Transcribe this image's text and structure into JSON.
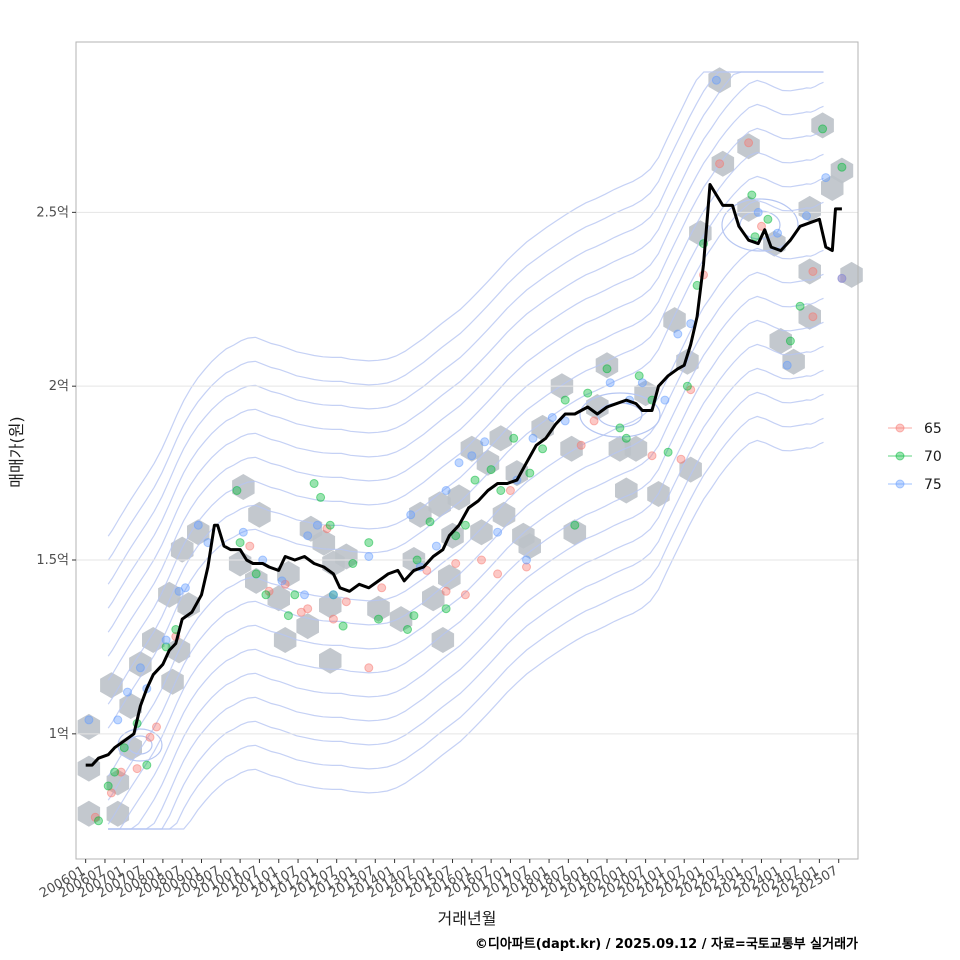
{
  "chart_data": {
    "type": "scatter",
    "xlabel": "거래년월",
    "ylabel": "매매가(원)",
    "caption": "©디아파트(dapt.kr) / 2025.09.12 / 자료=국토교통부 실거래가",
    "x_ticks": [
      "200601",
      "200607",
      "200701",
      "200707",
      "200801",
      "200807",
      "200901",
      "200907",
      "201001",
      "201007",
      "201101",
      "201107",
      "201201",
      "201207",
      "201301",
      "201307",
      "201401",
      "201407",
      "201501",
      "201507",
      "201601",
      "201607",
      "201701",
      "201707",
      "201801",
      "201807",
      "201901",
      "201907",
      "202001",
      "202007",
      "202101",
      "202107",
      "202201",
      "202207",
      "202301",
      "202307",
      "202401",
      "202407",
      "202501",
      "202507"
    ],
    "y_ticks": [
      {
        "value": 100000000,
        "label": "1억"
      },
      {
        "value": 150000000,
        "label": "1.5억"
      },
      {
        "value": 200000000,
        "label": "2억"
      },
      {
        "value": 250000000,
        "label": "2.5억"
      }
    ],
    "xlim": [
      "2005-10",
      "2026-01"
    ],
    "ylim": [
      64000000,
      299000000
    ],
    "grid": "horizontal",
    "legend_position": "right",
    "legend": [
      {
        "name": "65",
        "color": "#f8766d"
      },
      {
        "name": "70",
        "color": "#00ba38"
      },
      {
        "name": "75",
        "color": "#619cff"
      }
    ],
    "trend_line": [
      [
        "2006-01",
        91
      ],
      [
        "2006-03",
        91
      ],
      [
        "2006-05",
        93
      ],
      [
        "2006-08",
        94
      ],
      [
        "2006-10",
        96
      ],
      [
        "2007-01",
        98
      ],
      [
        "2007-04",
        100
      ],
      [
        "2007-06",
        108
      ],
      [
        "2007-08",
        113
      ],
      [
        "2007-10",
        117
      ],
      [
        "2008-01",
        120
      ],
      [
        "2008-03",
        124
      ],
      [
        "2008-05",
        126
      ],
      [
        "2008-07",
        133
      ],
      [
        "2008-10",
        135
      ],
      [
        "2009-01",
        140
      ],
      [
        "2009-03",
        148
      ],
      [
        "2009-05",
        160
      ],
      [
        "2009-06",
        160
      ],
      [
        "2009-08",
        154
      ],
      [
        "2009-10",
        153
      ],
      [
        "2010-01",
        153
      ],
      [
        "2010-03",
        150
      ],
      [
        "2010-05",
        149
      ],
      [
        "2010-08",
        149
      ],
      [
        "2010-10",
        148
      ],
      [
        "2011-01",
        147
      ],
      [
        "2011-03",
        151
      ],
      [
        "2011-06",
        150
      ],
      [
        "2011-09",
        151
      ],
      [
        "2011-12",
        149
      ],
      [
        "2012-03",
        148
      ],
      [
        "2012-06",
        146
      ],
      [
        "2012-08",
        142
      ],
      [
        "2012-11",
        141
      ],
      [
        "2013-02",
        143
      ],
      [
        "2013-05",
        142
      ],
      [
        "2013-08",
        144
      ],
      [
        "2013-11",
        146
      ],
      [
        "2014-02",
        147
      ],
      [
        "2014-04",
        144
      ],
      [
        "2014-07",
        147
      ],
      [
        "2014-10",
        148
      ],
      [
        "2015-01",
        151
      ],
      [
        "2015-04",
        153
      ],
      [
        "2015-06",
        157
      ],
      [
        "2015-09",
        160
      ],
      [
        "2015-12",
        165
      ],
      [
        "2016-03",
        167
      ],
      [
        "2016-06",
        170
      ],
      [
        "2016-09",
        172
      ],
      [
        "2016-12",
        172
      ],
      [
        "2017-03",
        173
      ],
      [
        "2017-06",
        178
      ],
      [
        "2017-09",
        183
      ],
      [
        "2017-12",
        185
      ],
      [
        "2018-03",
        189
      ],
      [
        "2018-06",
        192
      ],
      [
        "2018-09",
        192
      ],
      [
        "2019-01",
        194
      ],
      [
        "2019-04",
        192
      ],
      [
        "2019-07",
        194
      ],
      [
        "2019-10",
        195
      ],
      [
        "2020-01",
        196
      ],
      [
        "2020-04",
        195
      ],
      [
        "2020-06",
        193
      ],
      [
        "2020-09",
        193
      ],
      [
        "2020-11",
        200
      ],
      [
        "2021-02",
        203
      ],
      [
        "2021-05",
        205
      ],
      [
        "2021-07",
        206
      ],
      [
        "2021-09",
        212
      ],
      [
        "2021-11",
        220
      ],
      [
        "2022-01",
        235
      ],
      [
        "2022-03",
        258
      ],
      [
        "2022-05",
        255
      ],
      [
        "2022-07",
        252
      ],
      [
        "2022-10",
        252
      ],
      [
        "2022-12",
        246
      ],
      [
        "2023-03",
        242
      ],
      [
        "2023-06",
        241
      ],
      [
        "2023-08",
        245
      ],
      [
        "2023-10",
        240
      ],
      [
        "2024-01",
        239
      ],
      [
        "2024-04",
        242
      ],
      [
        "2024-07",
        246
      ],
      [
        "2024-10",
        247
      ],
      [
        "2025-01",
        248
      ],
      [
        "2025-03",
        240
      ],
      [
        "2025-05",
        239
      ],
      [
        "2025-06",
        251
      ],
      [
        "2025-08",
        251
      ]
    ],
    "hexbins": [
      [
        "2006-02",
        102
      ],
      [
        "2006-02",
        90
      ],
      [
        "2006-02",
        77
      ],
      [
        "2006-11",
        77
      ],
      [
        "2006-11",
        86
      ],
      [
        "2007-03",
        96
      ],
      [
        "2006-09",
        114
      ],
      [
        "2007-06",
        120
      ],
      [
        "2007-03",
        108
      ],
      [
        "2007-10",
        127
      ],
      [
        "2008-04",
        115
      ],
      [
        "2008-06",
        124
      ],
      [
        "2008-03",
        140
      ],
      [
        "2008-09",
        137
      ],
      [
        "2008-07",
        153
      ],
      [
        "2008-12",
        158
      ],
      [
        "2010-02",
        171
      ],
      [
        "2010-07",
        163
      ],
      [
        "2010-01",
        149
      ],
      [
        "2010-06",
        144
      ],
      [
        "2011-01",
        139
      ],
      [
        "2011-04",
        146
      ],
      [
        "2011-03",
        127
      ],
      [
        "2011-10",
        131
      ],
      [
        "2011-11",
        159
      ],
      [
        "2012-03",
        155
      ],
      [
        "2012-06",
        149
      ],
      [
        "2012-05",
        137
      ],
      [
        "2012-10",
        151
      ],
      [
        "2012-05",
        121
      ],
      [
        "2013-08",
        136
      ],
      [
        "2014-03",
        133
      ],
      [
        "2014-07",
        150
      ],
      [
        "2014-09",
        163
      ],
      [
        "2015-01",
        139
      ],
      [
        "2015-04",
        127
      ],
      [
        "2015-06",
        145
      ],
      [
        "2015-07",
        157
      ],
      [
        "2015-03",
        166
      ],
      [
        "2015-09",
        168
      ],
      [
        "2016-01",
        182
      ],
      [
        "2016-06",
        178
      ],
      [
        "2016-04",
        158
      ],
      [
        "2016-11",
        163
      ],
      [
        "2016-10",
        185
      ],
      [
        "2017-03",
        175
      ],
      [
        "2017-05",
        157
      ],
      [
        "2017-07",
        154
      ],
      [
        "2017-11",
        188
      ],
      [
        "2018-05",
        200
      ],
      [
        "2018-08",
        182
      ],
      [
        "2018-09",
        158
      ],
      [
        "2019-07",
        206
      ],
      [
        "2019-04",
        194
      ],
      [
        "2019-11",
        182
      ],
      [
        "2020-04",
        182
      ],
      [
        "2020-07",
        198
      ],
      [
        "2020-01",
        170
      ],
      [
        "2020-11",
        169
      ],
      [
        "2021-04",
        219
      ],
      [
        "2021-08",
        207
      ],
      [
        "2021-12",
        244
      ],
      [
        "2021-09",
        176
      ],
      [
        "2022-07",
        264
      ],
      [
        "2022-06",
        288
      ],
      [
        "2023-03",
        269
      ],
      [
        "2023-03",
        251
      ],
      [
        "2023-11",
        241
      ],
      [
        "2024-01",
        213
      ],
      [
        "2024-05",
        207
      ],
      [
        "2024-10",
        233
      ],
      [
        "2024-10",
        220
      ],
      [
        "2024-10",
        251
      ],
      [
        "2025-02",
        275
      ],
      [
        "2025-05",
        257
      ],
      [
        "2025-08",
        262
      ],
      [
        "2025-11",
        232
      ]
    ],
    "series": [
      {
        "name": "65",
        "points": [
          [
            "2006-04",
            76
          ],
          [
            "2006-09",
            83
          ],
          [
            "2006-12",
            89
          ],
          [
            "2007-05",
            90
          ],
          [
            "2007-09",
            99
          ],
          [
            "2007-11",
            102
          ],
          [
            "2008-05",
            128
          ],
          [
            "2010-04",
            154
          ],
          [
            "2010-10",
            141
          ],
          [
            "2011-03",
            143
          ],
          [
            "2011-08",
            135
          ],
          [
            "2011-10",
            136
          ],
          [
            "2012-04",
            159
          ],
          [
            "2012-06",
            133
          ],
          [
            "2012-10",
            138
          ],
          [
            "2013-05",
            119
          ],
          [
            "2013-09",
            142
          ],
          [
            "2014-11",
            147
          ],
          [
            "2015-05",
            141
          ],
          [
            "2015-08",
            149
          ],
          [
            "2015-11",
            140
          ],
          [
            "2016-04",
            150
          ],
          [
            "2016-09",
            146
          ],
          [
            "2017-06",
            148
          ],
          [
            "2017-01",
            170
          ],
          [
            "2018-11",
            183
          ],
          [
            "2019-03",
            190
          ],
          [
            "2020-09",
            180
          ],
          [
            "2021-06",
            179
          ],
          [
            "2021-09",
            199
          ],
          [
            "2022-01",
            232
          ],
          [
            "2022-06",
            264
          ],
          [
            "2023-03",
            270
          ],
          [
            "2023-07",
            246
          ],
          [
            "2024-11",
            233
          ],
          [
            "2024-11",
            220
          ],
          [
            "2025-08",
            231
          ]
        ]
      },
      {
        "name": "70",
        "points": [
          [
            "2006-05",
            75
          ],
          [
            "2006-08",
            85
          ],
          [
            "2006-10",
            89
          ],
          [
            "2007-01",
            96
          ],
          [
            "2007-05",
            103
          ],
          [
            "2007-08",
            91
          ],
          [
            "2008-02",
            125
          ],
          [
            "2008-05",
            130
          ],
          [
            "2009-12",
            170
          ],
          [
            "2010-01",
            155
          ],
          [
            "2010-06",
            146
          ],
          [
            "2010-09",
            140
          ],
          [
            "2011-06",
            140
          ],
          [
            "2011-04",
            134
          ],
          [
            "2011-12",
            172
          ],
          [
            "2012-02",
            168
          ],
          [
            "2012-05",
            160
          ],
          [
            "2012-06",
            140
          ],
          [
            "2012-09",
            131
          ],
          [
            "2012-12",
            149
          ],
          [
            "2013-05",
            155
          ],
          [
            "2013-08",
            133
          ],
          [
            "2014-05",
            130
          ],
          [
            "2014-07",
            134
          ],
          [
            "2014-08",
            150
          ],
          [
            "2014-12",
            161
          ],
          [
            "2015-05",
            136
          ],
          [
            "2015-08",
            157
          ],
          [
            "2015-11",
            160
          ],
          [
            "2016-02",
            173
          ],
          [
            "2016-07",
            176
          ],
          [
            "2016-10",
            170
          ],
          [
            "2017-02",
            185
          ],
          [
            "2017-07",
            175
          ],
          [
            "2017-11",
            182
          ],
          [
            "2018-06",
            196
          ],
          [
            "2018-09",
            160
          ],
          [
            "2019-01",
            198
          ],
          [
            "2019-07",
            205
          ],
          [
            "2019-11",
            188
          ],
          [
            "2020-01",
            185
          ],
          [
            "2020-05",
            203
          ],
          [
            "2020-09",
            196
          ],
          [
            "2021-02",
            181
          ],
          [
            "2021-08",
            200
          ],
          [
            "2021-11",
            229
          ],
          [
            "2022-01",
            241
          ],
          [
            "2023-04",
            255
          ],
          [
            "2023-05",
            243
          ],
          [
            "2023-09",
            248
          ],
          [
            "2024-04",
            213
          ],
          [
            "2024-07",
            223
          ],
          [
            "2025-02",
            274
          ],
          [
            "2025-08",
            263
          ]
        ]
      },
      {
        "name": "75",
        "points": [
          [
            "2006-02",
            104
          ],
          [
            "2006-11",
            104
          ],
          [
            "2007-02",
            112
          ],
          [
            "2007-06",
            119
          ],
          [
            "2007-08",
            113
          ],
          [
            "2008-02",
            127
          ],
          [
            "2008-06",
            141
          ],
          [
            "2008-08",
            142
          ],
          [
            "2008-12",
            160
          ],
          [
            "2009-03",
            155
          ],
          [
            "2010-02",
            158
          ],
          [
            "2010-08",
            150
          ],
          [
            "2011-02",
            144
          ],
          [
            "2011-09",
            140
          ],
          [
            "2011-10",
            157
          ],
          [
            "2012-01",
            160
          ],
          [
            "2012-06",
            140
          ],
          [
            "2013-05",
            151
          ],
          [
            "2014-06",
            163
          ],
          [
            "2014-09",
            148
          ],
          [
            "2015-02",
            154
          ],
          [
            "2015-05",
            170
          ],
          [
            "2015-09",
            178
          ],
          [
            "2016-01",
            180
          ],
          [
            "2016-05",
            184
          ],
          [
            "2016-09",
            158
          ],
          [
            "2017-03",
            173
          ],
          [
            "2017-06",
            150
          ],
          [
            "2017-08",
            185
          ],
          [
            "2018-02",
            191
          ],
          [
            "2018-06",
            190
          ],
          [
            "2019-08",
            201
          ],
          [
            "2020-02",
            196
          ],
          [
            "2020-06",
            201
          ],
          [
            "2021-01",
            196
          ],
          [
            "2021-05",
            215
          ],
          [
            "2021-09",
            218
          ],
          [
            "2022-05",
            288
          ],
          [
            "2023-06",
            250
          ],
          [
            "2023-12",
            244
          ],
          [
            "2024-03",
            206
          ],
          [
            "2024-09",
            249
          ],
          [
            "2025-03",
            260
          ],
          [
            "2025-08",
            231
          ]
        ]
      }
    ]
  }
}
